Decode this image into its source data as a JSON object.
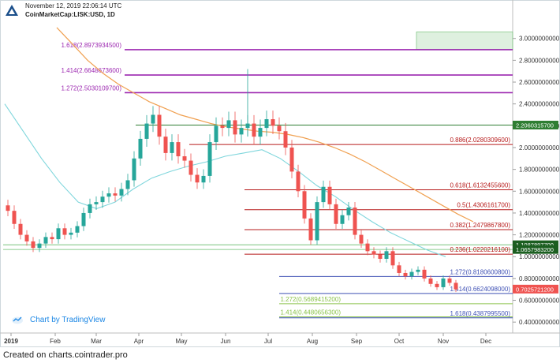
{
  "header": {
    "date": "November 12, 2019 22:06:14 UTC",
    "symbol": "CoinMarketCap:LISK:USD, 1D"
  },
  "footer": {
    "text": "Created on charts.cointrader.pro"
  },
  "watermark": {
    "text": "Chart by TradingView",
    "icon": "tradingview-cloud-icon"
  },
  "chart_data": {
    "type": "candlestick",
    "title": "",
    "xlabel": "",
    "ylabel": "",
    "ylim": [
      0.3,
      3.15
    ],
    "y_ticks": [
      "3.0000000000",
      "2.8000000000",
      "2.6000000000",
      "2.4000000000",
      "2.2000000000",
      "2.0000000000",
      "1.8000000000",
      "1.6000000000",
      "1.4000000000",
      "1.2000000000",
      "1.0000000000",
      "0.8000000000",
      "0.6000000000",
      "0.4000000000"
    ],
    "x_ticks": [
      "2019",
      "Feb",
      "Mar",
      "Apr",
      "May",
      "Jun",
      "Jul",
      "Aug",
      "Sep",
      "Oct",
      "Nov",
      "Dec"
    ],
    "price_tags": [
      {
        "label": "2.2060315700",
        "value": 2.206,
        "color": "#2e7d32"
      },
      {
        "label": "1.1087897700",
        "value": 1.1088,
        "color": "#1b5e20"
      },
      {
        "label": "1.0657983200",
        "value": 1.0658,
        "color": "#1b5e20"
      },
      {
        "label": "0.7025721200",
        "value": 0.7026,
        "color": "#ef5350"
      }
    ],
    "fib_levels": [
      {
        "label": "1.618(2.8973934500)",
        "value": 2.8974,
        "color": "#9c27b0",
        "label_side": "left"
      },
      {
        "label": "1.414(2.6648673600)",
        "value": 2.6649,
        "color": "#9c27b0",
        "label_side": "left"
      },
      {
        "label": "1.272(2.5030109700)",
        "value": 2.503,
        "color": "#9c27b0",
        "label_side": "left"
      },
      {
        "label": "0.886(2.0280309600)",
        "value": 2.028,
        "color": "#b71c1c",
        "label_side": "right"
      },
      {
        "label": "0.618(1.6132455600)",
        "value": 1.6132,
        "color": "#b71c1c",
        "label_side": "right"
      },
      {
        "label": "0.5(1.4306161700)",
        "value": 1.4306,
        "color": "#b71c1c",
        "label_side": "right"
      },
      {
        "label": "0.382(1.2479867800)",
        "value": 1.248,
        "color": "#b71c1c",
        "label_side": "right"
      },
      {
        "label": "0.236(1.0220216100)",
        "value": 1.022,
        "color": "#b71c1c",
        "label_side": "right"
      },
      {
        "label": "1.272(0.8180600800)",
        "value": 0.8181,
        "color": "#3f51b5",
        "label_side": "right"
      },
      {
        "label": "1.414(0.6624098000)",
        "value": 0.6624,
        "color": "#3f51b5",
        "label_side": "right"
      },
      {
        "label": "1.272(0.5689415200)",
        "value": 0.5689,
        "color": "#8bc34a",
        "label_side": "left"
      },
      {
        "label": "1.414(0.4480656300)",
        "value": 0.4481,
        "color": "#8bc34a",
        "label_side": "left"
      },
      {
        "label": "1.618(0.4387995500)",
        "value": 0.4388,
        "color": "#3f51b5",
        "label_side": "right"
      }
    ],
    "series": [
      {
        "name": "",
        "kind": "candles",
        "values": [
          1.42,
          1.3,
          1.2,
          1.14,
          1.08,
          1.12,
          1.18,
          1.16,
          1.26,
          1.2,
          1.22,
          1.28,
          1.4,
          1.48,
          1.5,
          1.55,
          1.58,
          1.56,
          1.62,
          1.7,
          1.9,
          2.08,
          2.22,
          2.3,
          2.1,
          1.95,
          2.05,
          1.92,
          1.88,
          1.75,
          1.68,
          1.74,
          2.05,
          2.2,
          2.18,
          2.25,
          2.12,
          2.18,
          2.22,
          2.1,
          2.18,
          2.26,
          2.2,
          2.15,
          2.0,
          1.78,
          1.6,
          1.35,
          1.15,
          1.5,
          1.64,
          1.48,
          1.3,
          1.38,
          1.45,
          1.2,
          1.12,
          1.05,
          1.02,
          0.98,
          1.05,
          0.92,
          0.85,
          0.82,
          0.86,
          0.88,
          0.8,
          0.75,
          0.72,
          0.8,
          0.76,
          0.7
        ]
      },
      {
        "name": "",
        "kind": "moving-average-long",
        "color": "#f0a050",
        "values": [
          3.1,
          2.95,
          2.8,
          2.68,
          2.58,
          2.5,
          2.42,
          2.36,
          2.3,
          2.26,
          2.22,
          2.19,
          2.17,
          2.15,
          2.14,
          2.12,
          2.09,
          2.05,
          2.0,
          1.94,
          1.87,
          1.79,
          1.71,
          1.63,
          1.55,
          1.47,
          1.39,
          1.32
        ]
      },
      {
        "name": "",
        "kind": "moving-average-short",
        "color": "#7fd6dc",
        "values": [
          2.4,
          2.15,
          1.9,
          1.68,
          1.5,
          1.44,
          1.5,
          1.62,
          1.72,
          1.78,
          1.83,
          1.87,
          1.92,
          1.95,
          1.98,
          1.9,
          1.78,
          1.65,
          1.55,
          1.43,
          1.32,
          1.22,
          1.14,
          1.06,
          1.0
        ]
      }
    ]
  }
}
